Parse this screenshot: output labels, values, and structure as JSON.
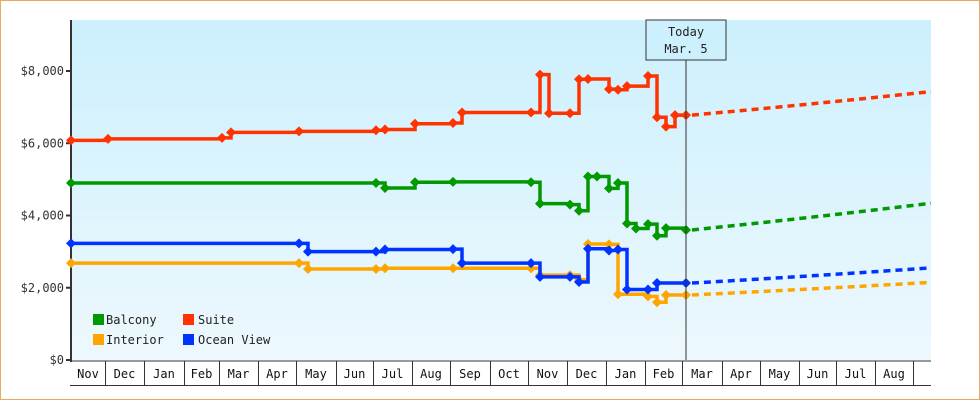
{
  "chart_data": {
    "type": "line",
    "title": "",
    "xlabel": "",
    "ylabel": "",
    "ylim": [
      0,
      9000
    ],
    "yticks": [
      "$0",
      "$2,000",
      "$4,000",
      "$6,000",
      "$8,000"
    ],
    "ytick_values": [
      0,
      2000,
      4000,
      6000,
      8000
    ],
    "x_months": [
      "Nov",
      "Dec",
      "Jan",
      "Feb",
      "Mar",
      "Apr",
      "May",
      "Jun",
      "Jul",
      "Aug",
      "Sep",
      "Oct",
      "Nov",
      "Dec",
      "Jan",
      "Feb",
      "Mar",
      "Apr",
      "May",
      "Jun",
      "Jul",
      "Aug"
    ],
    "today_marker": {
      "line1": "Today",
      "line2": "Mar. 5"
    },
    "legend": [
      {
        "name": "Balcony",
        "color": "#009900"
      },
      {
        "name": "Suite",
        "color": "#ff3300"
      },
      {
        "name": "Interior",
        "color": "#ffa500"
      },
      {
        "name": "Ocean View",
        "color": "#0033ff"
      }
    ],
    "series": [
      {
        "name": "Suite",
        "color": "#ff3300",
        "historical": [
          [
            "Nov",
            6080
          ],
          [
            "Dec",
            6120
          ],
          [
            "Mar",
            6150
          ],
          [
            "Mar",
            6300
          ],
          [
            "May",
            6330
          ],
          [
            "Jul",
            6360
          ],
          [
            "Jul",
            6380
          ],
          [
            "Aug",
            6540
          ],
          [
            "Sep",
            6560
          ],
          [
            "Sep",
            6850
          ],
          [
            "Nov",
            6850
          ],
          [
            "Nov",
            7900
          ],
          [
            "Nov",
            6830
          ],
          [
            "Dec",
            6830
          ],
          [
            "Dec",
            7770
          ],
          [
            "Dec",
            7780
          ],
          [
            "Jan",
            7500
          ],
          [
            "Jan",
            7480
          ],
          [
            "Jan",
            7580
          ],
          [
            "Feb",
            7860
          ],
          [
            "Feb",
            6720
          ],
          [
            "Feb",
            6460
          ],
          [
            "Feb",
            6780
          ],
          [
            "Mar",
            6780
          ]
        ],
        "forecast": [
          [
            "Mar",
            6780
          ],
          [
            "Aug",
            7430
          ]
        ]
      },
      {
        "name": "Balcony",
        "color": "#009900",
        "historical": [
          [
            "Nov",
            4900
          ],
          [
            "Jul",
            4900
          ],
          [
            "Jul",
            4760
          ],
          [
            "Aug",
            4920
          ],
          [
            "Sep",
            4930
          ],
          [
            "Nov",
            4920
          ],
          [
            "Nov",
            4330
          ],
          [
            "Dec",
            4300
          ],
          [
            "Dec",
            4130
          ],
          [
            "Dec",
            5080
          ],
          [
            "Dec",
            5080
          ],
          [
            "Jan",
            4750
          ],
          [
            "Jan",
            4900
          ],
          [
            "Jan",
            3780
          ],
          [
            "Jan",
            3640
          ],
          [
            "Feb",
            3760
          ],
          [
            "Feb",
            3440
          ],
          [
            "Feb",
            3650
          ],
          [
            "Mar",
            3600
          ]
        ],
        "forecast": [
          [
            "Mar",
            3600
          ],
          [
            "Aug",
            4340
          ]
        ]
      },
      {
        "name": "Ocean View",
        "color": "#0033ff",
        "historical": [
          [
            "Nov",
            3230
          ],
          [
            "May",
            3230
          ],
          [
            "May",
            3000
          ],
          [
            "Jul",
            3000
          ],
          [
            "Jul",
            3060
          ],
          [
            "Sep",
            3070
          ],
          [
            "Sep",
            2680
          ],
          [
            "Nov",
            2680
          ],
          [
            "Nov",
            2300
          ],
          [
            "Dec",
            2300
          ],
          [
            "Dec",
            2160
          ],
          [
            "Dec",
            3080
          ],
          [
            "Jan",
            3030
          ],
          [
            "Jan",
            3060
          ],
          [
            "Jan",
            1950
          ],
          [
            "Feb",
            1950
          ],
          [
            "Feb",
            2130
          ],
          [
            "Mar",
            2130
          ]
        ],
        "forecast": [
          [
            "Mar",
            2130
          ],
          [
            "Aug",
            2550
          ]
        ]
      },
      {
        "name": "Interior",
        "color": "#ffa500",
        "historical": [
          [
            "Nov",
            2680
          ],
          [
            "May",
            2680
          ],
          [
            "May",
            2520
          ],
          [
            "Jul",
            2520
          ],
          [
            "Jul",
            2540
          ],
          [
            "Sep",
            2540
          ],
          [
            "Nov",
            2540
          ],
          [
            "Nov",
            2350
          ],
          [
            "Dec",
            2350
          ],
          [
            "Dec",
            2220
          ],
          [
            "Dec",
            3210
          ],
          [
            "Jan",
            3200
          ],
          [
            "Jan",
            1820
          ],
          [
            "Feb",
            1760
          ],
          [
            "Feb",
            1600
          ],
          [
            "Feb",
            1800
          ],
          [
            "Mar",
            1800
          ]
        ],
        "forecast": [
          [
            "Mar",
            1800
          ],
          [
            "Aug",
            2150
          ]
        ]
      }
    ]
  }
}
